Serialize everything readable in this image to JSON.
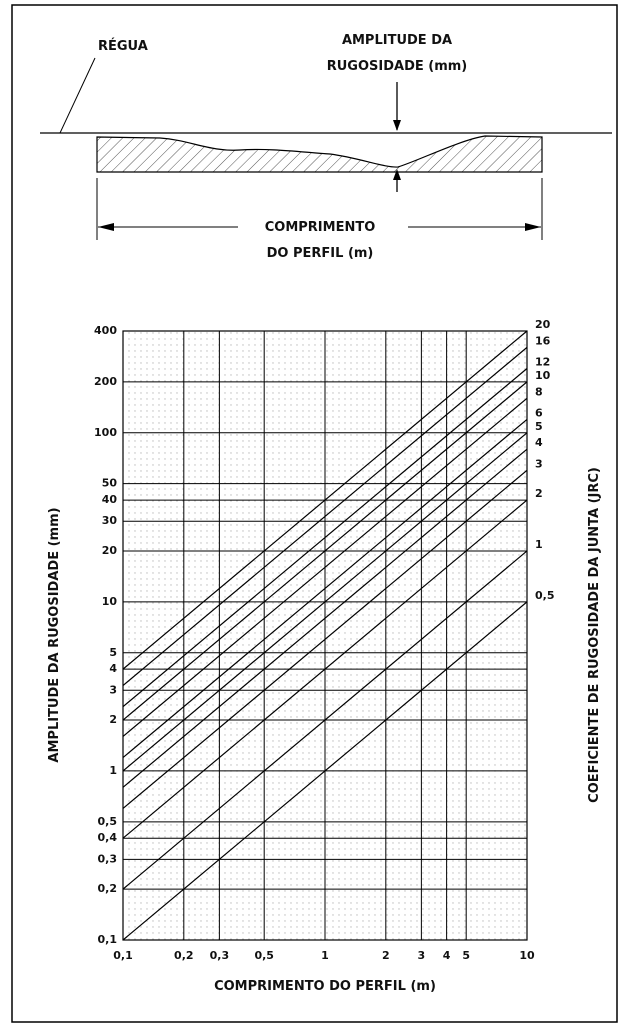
{
  "diagram": {
    "ruler_label": "RÉGUA",
    "amplitude_label": [
      "AMPLITUDE DA",
      "RUGOSIDADE (mm)"
    ],
    "length_label": [
      "COMPRIMENTO",
      "DO PERFIL (m)"
    ]
  },
  "chart_data": {
    "type": "line",
    "xlabel": "COMPRIMENTO DO PERFIL (m)",
    "ylabel": "AMPLITUDE DA RUGOSIDADE (mm)",
    "y2label": "COEFICIENTE DE RUGOSIDADE DA JUNTA (JRC)",
    "xscale": "log",
    "yscale": "log",
    "grid": true,
    "color": "#000000",
    "xlim": [
      0.1,
      10
    ],
    "ylim": [
      0.1,
      400
    ],
    "xticks": [
      {
        "value": 0.1,
        "label": "0,1"
      },
      {
        "value": 0.2,
        "label": "0,2"
      },
      {
        "value": 0.3,
        "label": "0,3"
      },
      {
        "value": 0.5,
        "label": "0,5"
      },
      1,
      2,
      3,
      4,
      5,
      10
    ],
    "yticks": [
      {
        "value": 0.1,
        "label": "0,1"
      },
      {
        "value": 0.2,
        "label": "0,2"
      },
      {
        "value": 0.3,
        "label": "0,3"
      },
      {
        "value": 0.4,
        "label": "0,4"
      },
      {
        "value": 0.5,
        "label": "0,5"
      },
      1,
      2,
      3,
      4,
      5,
      10,
      20,
      30,
      40,
      50,
      100,
      200,
      400
    ],
    "x": [
      0.1,
      10
    ],
    "series": [
      {
        "name": "20",
        "values": [
          4,
          400
        ]
      },
      {
        "name": "16",
        "values": [
          3.2,
          320
        ]
      },
      {
        "name": "12",
        "values": [
          2.4,
          240
        ]
      },
      {
        "name": "10",
        "values": [
          2,
          200
        ]
      },
      {
        "name": "8",
        "values": [
          1.6,
          160
        ]
      },
      {
        "name": "6",
        "values": [
          1.2,
          120
        ]
      },
      {
        "name": "5",
        "values": [
          1,
          100
        ]
      },
      {
        "name": "4",
        "values": [
          0.8,
          80
        ]
      },
      {
        "name": "3",
        "values": [
          0.6,
          60
        ]
      },
      {
        "name": "2",
        "values": [
          0.4,
          40
        ]
      },
      {
        "name": "1",
        "values": [
          0.2,
          20
        ]
      },
      {
        "name": "0,5",
        "values": [
          0.1,
          10
        ]
      }
    ]
  }
}
